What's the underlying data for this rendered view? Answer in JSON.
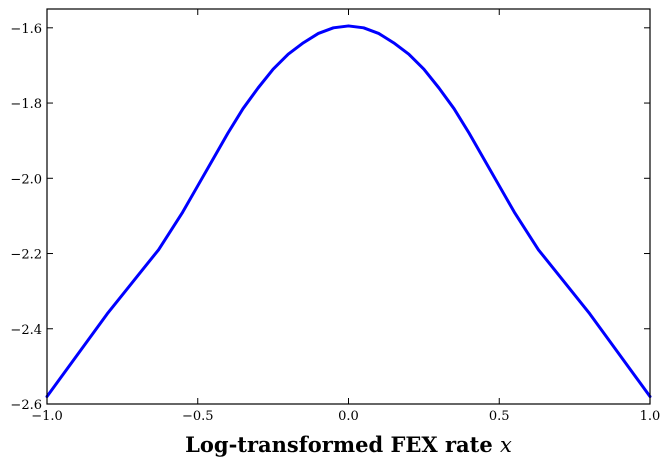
{
  "chart_data": {
    "type": "line",
    "xlabel": "Log-transformed FEX rate",
    "xlabel_var": "x",
    "xlim": [
      -1.0,
      1.0
    ],
    "ylim": [
      -2.6,
      -1.55
    ],
    "x_ticks": [
      -1.0,
      -0.5,
      0.0,
      0.5,
      1.0
    ],
    "x_tick_labels": [
      "−1.0",
      "−0.5",
      "0.0",
      "0.5",
      "1.0"
    ],
    "y_ticks": [
      -2.6,
      -2.4,
      -2.2,
      -2.0,
      -1.8,
      -1.6
    ],
    "y_tick_labels": [
      "−2.6",
      "−2.4",
      "−2.2",
      "−2.0",
      "−1.8",
      "−1.6"
    ],
    "grid": false,
    "series": [
      {
        "color": "#0000ff",
        "x": [
          -1.0,
          -0.9,
          -0.8,
          -0.7,
          -0.63,
          -0.55,
          -0.5,
          -0.45,
          -0.4,
          -0.35,
          -0.3,
          -0.25,
          -0.2,
          -0.15,
          -0.1,
          -0.05,
          0.0,
          0.05,
          0.1,
          0.15,
          0.2,
          0.25,
          0.3,
          0.35,
          0.4,
          0.45,
          0.5,
          0.55,
          0.63,
          0.7,
          0.8,
          0.9,
          1.0
        ],
        "y": [
          -2.58,
          -2.47,
          -2.36,
          -2.26,
          -2.19,
          -2.09,
          -2.02,
          -1.95,
          -1.88,
          -1.815,
          -1.76,
          -1.71,
          -1.67,
          -1.64,
          -1.615,
          -1.6,
          -1.595,
          -1.6,
          -1.615,
          -1.64,
          -1.67,
          -1.71,
          -1.76,
          -1.815,
          -1.88,
          -1.95,
          -2.02,
          -2.09,
          -2.19,
          -2.26,
          -2.36,
          -2.47,
          -2.58
        ]
      }
    ]
  }
}
